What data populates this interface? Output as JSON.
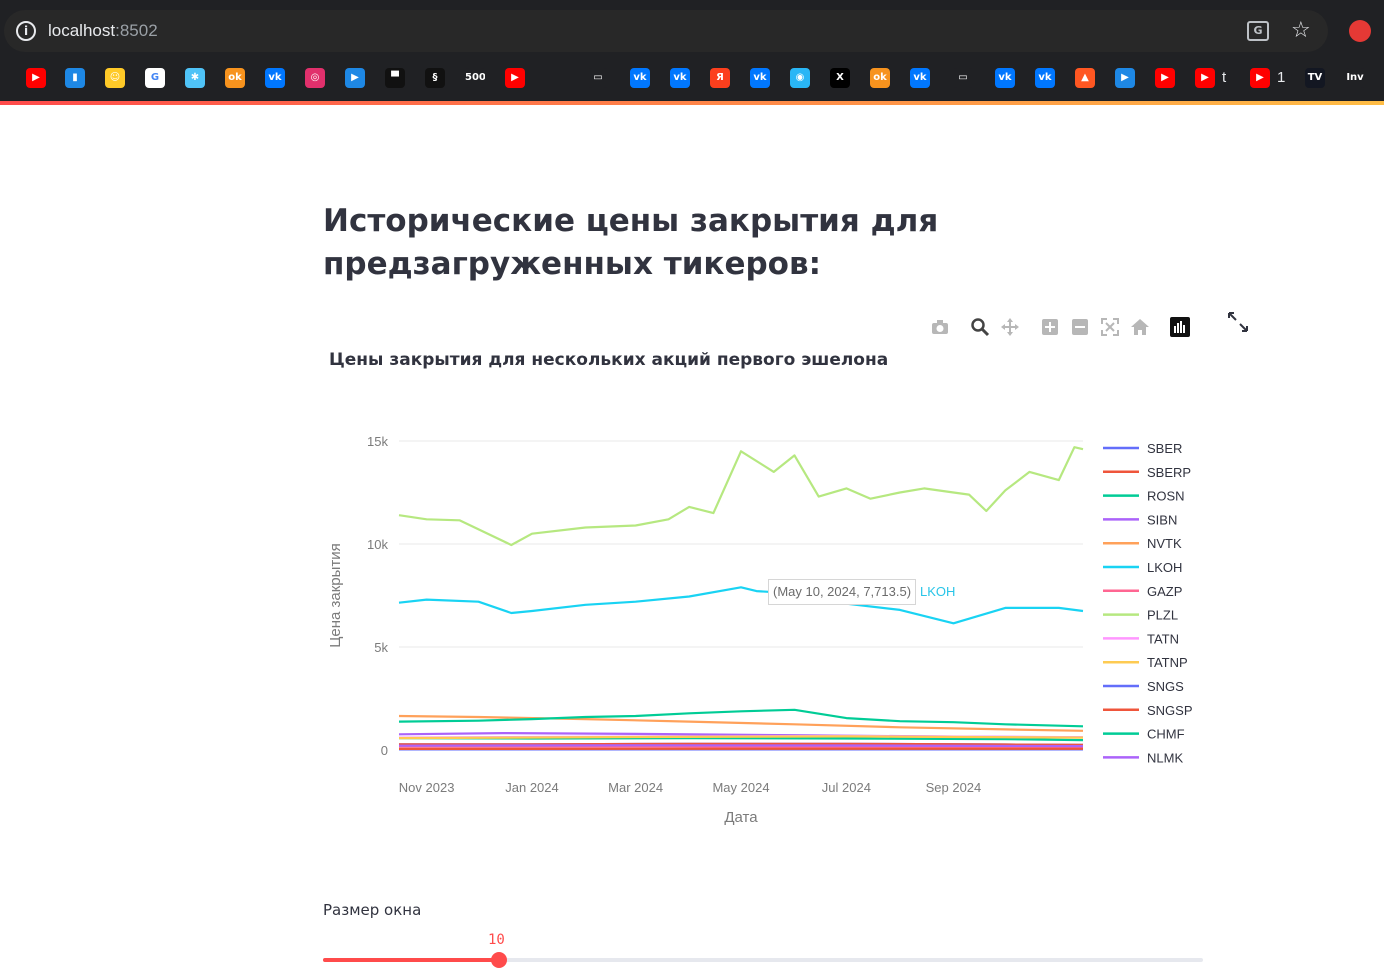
{
  "browser": {
    "url_host": "localhost",
    "url_port": ":8502",
    "bookmarks": [
      {
        "icon": "youtube-icon",
        "color": "#ff0000",
        "glyph": "▶"
      },
      {
        "icon": "analytics-icon",
        "color": "#1e88e5",
        "glyph": "▮"
      },
      {
        "icon": "smile-icon",
        "color": "#ffca28",
        "glyph": "☺"
      },
      {
        "icon": "google-icon",
        "color": "#ffffff",
        "glyph": "G"
      },
      {
        "icon": "puzzle-icon",
        "color": "#4fc3f7",
        "glyph": "✱"
      },
      {
        "icon": "odnoklassniki-icon",
        "color": "#f7931e",
        "glyph": "ok"
      },
      {
        "icon": "vk-icon",
        "color": "#0077ff",
        "glyph": "vk"
      },
      {
        "icon": "instagram-icon",
        "color": "#e1306c",
        "glyph": "◎"
      },
      {
        "icon": "play-icon",
        "color": "#1e88e5",
        "glyph": "▶"
      },
      {
        "icon": "unsplash-icon",
        "color": "#111111",
        "glyph": "▀"
      },
      {
        "icon": "squarespace-icon",
        "color": "#111111",
        "glyph": "§"
      },
      {
        "icon": "500px-icon",
        "color": "#202124",
        "glyph": "500"
      },
      {
        "icon": "youtube-icon",
        "color": "#ff0000",
        "glyph": "▶"
      },
      {
        "icon": "folder-icon",
        "color": "#202124",
        "glyph": "▭"
      },
      {
        "icon": "vk-icon",
        "color": "#0077ff",
        "glyph": "vk"
      },
      {
        "icon": "vk-icon",
        "color": "#0077ff",
        "glyph": "vk"
      },
      {
        "icon": "yandex-icon",
        "color": "#fc3f1d",
        "glyph": "Я"
      },
      {
        "icon": "vk-icon",
        "color": "#0077ff",
        "glyph": "vk"
      },
      {
        "icon": "cloud-icon",
        "color": "#29b6f6",
        "glyph": "◉"
      },
      {
        "icon": "x-icon",
        "color": "#000000",
        "glyph": "X"
      },
      {
        "icon": "odnoklassniki-icon",
        "color": "#f7931e",
        "glyph": "ok"
      },
      {
        "icon": "vk-icon",
        "color": "#0077ff",
        "glyph": "vk"
      },
      {
        "icon": "folder-icon",
        "color": "#202124",
        "glyph": "▭"
      },
      {
        "icon": "vk-icon",
        "color": "#0077ff",
        "glyph": "vk"
      },
      {
        "icon": "vk-icon",
        "color": "#0077ff",
        "glyph": "vk"
      },
      {
        "icon": "flame-icon",
        "color": "#ff5722",
        "glyph": "▲"
      },
      {
        "icon": "play-icon",
        "color": "#1e88e5",
        "glyph": "▶"
      },
      {
        "icon": "youtube-icon",
        "color": "#ff0000",
        "glyph": "▶"
      },
      {
        "icon": "youtube-icon",
        "color": "#ff0000",
        "glyph": "▶"
      },
      {
        "icon": "youtube-icon",
        "color": "#ff0000",
        "glyph": "▶"
      },
      {
        "icon": "tradingview-icon",
        "color": "#131722",
        "glyph": "TV"
      },
      {
        "icon": "investing-icon",
        "color": "#202124",
        "glyph": "Inv"
      }
    ],
    "bookmark_texts": [
      "t",
      "1"
    ]
  },
  "page": {
    "title": "Исторические цены закрытия для предзагруженных тикеров:"
  },
  "chart_data": {
    "type": "line",
    "title": "Цены закрытия для нескольких акций первого эшелона",
    "xlabel": "Дата",
    "ylabel": "Цена закрытия",
    "ylim": [
      0,
      15000
    ],
    "y_ticks": [
      0,
      5000,
      10000,
      15000
    ],
    "y_tick_labels": [
      "0",
      "5k",
      "10k",
      "15k"
    ],
    "x_tick_labels": [
      "Nov 2023",
      "Jan 2024",
      "Mar 2024",
      "May 2024",
      "Jul 2024",
      "Sep 2024"
    ],
    "x_ticks": [
      "2023-11-01",
      "2024-01-01",
      "2024-03-01",
      "2024-05-01",
      "2024-07-01",
      "2024-09-01"
    ],
    "x_range": [
      "2023-10-16",
      "2024-11-15"
    ],
    "legend_position": "right",
    "grid": true,
    "series": [
      {
        "name": "SBER",
        "color": "#636efa",
        "x": [
          "2023-10-16",
          "2024-01-01",
          "2024-04-01",
          "2024-07-01",
          "2024-10-01",
          "2024-11-15"
        ],
        "values": [
          270,
          272,
          300,
          300,
          265,
          250
        ]
      },
      {
        "name": "SBERP",
        "color": "#ef553b",
        "x": [
          "2023-10-16",
          "2024-01-01",
          "2024-04-01",
          "2024-07-01",
          "2024-10-01",
          "2024-11-15"
        ],
        "values": [
          270,
          272,
          300,
          300,
          265,
          250
        ]
      },
      {
        "name": "ROSN",
        "color": "#00cc96",
        "x": [
          "2023-10-16",
          "2024-01-01",
          "2024-04-01",
          "2024-07-01",
          "2024-10-01",
          "2024-11-15"
        ],
        "values": [
          580,
          560,
          580,
          560,
          530,
          480
        ]
      },
      {
        "name": "SIBN",
        "color": "#ab63fa",
        "x": [
          "2023-10-16",
          "2023-12-15",
          "2024-03-01",
          "2024-06-01",
          "2024-09-01",
          "2024-11-15"
        ],
        "values": [
          760,
          820,
          780,
          720,
          650,
          610
        ]
      },
      {
        "name": "NVTK",
        "color": "#ffa15a",
        "x": [
          "2023-10-16",
          "2023-12-01",
          "2024-02-01",
          "2024-04-01",
          "2024-06-01",
          "2024-08-01",
          "2024-10-01",
          "2024-11-15"
        ],
        "values": [
          1650,
          1600,
          1500,
          1380,
          1250,
          1100,
          1000,
          930
        ]
      },
      {
        "name": "LKOH",
        "color": "#19d3f3",
        "x": [
          "2023-10-16",
          "2023-11-01",
          "2023-12-01",
          "2023-12-20",
          "2024-01-01",
          "2024-02-01",
          "2024-03-01",
          "2024-04-01",
          "2024-05-01",
          "2024-05-10",
          "2024-06-01",
          "2024-07-01",
          "2024-08-01",
          "2024-09-01",
          "2024-10-01",
          "2024-11-01",
          "2024-11-15"
        ],
        "values": [
          7150,
          7300,
          7200,
          6650,
          6750,
          7050,
          7200,
          7450,
          7900,
          7713.5,
          7600,
          7100,
          6800,
          6150,
          6900,
          6900,
          6750
        ]
      },
      {
        "name": "GAZP",
        "color": "#ff6692",
        "x": [
          "2023-10-16",
          "2024-03-01",
          "2024-07-01",
          "2024-11-15"
        ],
        "values": [
          170,
          160,
          130,
          120
        ]
      },
      {
        "name": "PLZL",
        "color": "#b6e880",
        "x": [
          "2023-10-16",
          "2023-11-01",
          "2023-11-20",
          "2023-12-20",
          "2024-01-01",
          "2024-02-01",
          "2024-03-01",
          "2024-03-20",
          "2024-04-01",
          "2024-04-15",
          "2024-05-01",
          "2024-05-20",
          "2024-06-01",
          "2024-06-15",
          "2024-07-01",
          "2024-07-15",
          "2024-08-01",
          "2024-08-15",
          "2024-09-01",
          "2024-09-10",
          "2024-09-20",
          "2024-10-01",
          "2024-10-15",
          "2024-11-01",
          "2024-11-10",
          "2024-11-15"
        ],
        "values": [
          11400,
          11200,
          11150,
          9950,
          10500,
          10800,
          10900,
          11200,
          11800,
          11500,
          14500,
          13500,
          14300,
          12300,
          12700,
          12200,
          12500,
          12700,
          12500,
          12400,
          11600,
          12600,
          13500,
          13100,
          14700,
          14600
        ]
      },
      {
        "name": "TATN",
        "color": "#ff97ff",
        "x": [
          "2023-10-16",
          "2024-03-01",
          "2024-07-01",
          "2024-11-15"
        ],
        "values": [
          600,
          650,
          680,
          620
        ]
      },
      {
        "name": "TATNP",
        "color": "#fecb52",
        "x": [
          "2023-10-16",
          "2024-03-01",
          "2024-07-01",
          "2024-11-15"
        ],
        "values": [
          580,
          630,
          660,
          600
        ]
      },
      {
        "name": "SNGS",
        "color": "#636efa",
        "x": [
          "2023-10-16",
          "2024-03-01",
          "2024-07-01",
          "2024-11-15"
        ],
        "values": [
          30,
          31,
          30,
          27
        ]
      },
      {
        "name": "SNGSP",
        "color": "#ef553b",
        "x": [
          "2023-10-16",
          "2024-03-01",
          "2024-07-01",
          "2024-11-15"
        ],
        "values": [
          55,
          58,
          60,
          57
        ]
      },
      {
        "name": "CHMF",
        "color": "#00cc96",
        "x": [
          "2023-10-16",
          "2023-12-01",
          "2024-01-01",
          "2024-02-01",
          "2024-03-01",
          "2024-04-01",
          "2024-05-01",
          "2024-06-01",
          "2024-07-01",
          "2024-08-01",
          "2024-09-01",
          "2024-10-01",
          "2024-11-15"
        ],
        "values": [
          1380,
          1420,
          1500,
          1600,
          1650,
          1780,
          1880,
          1950,
          1550,
          1400,
          1350,
          1250,
          1150
        ]
      },
      {
        "name": "NLMK",
        "color": "#ab63fa",
        "x": [
          "2023-10-16",
          "2024-03-01",
          "2024-07-01",
          "2024-11-15"
        ],
        "values": [
          210,
          230,
          220,
          190
        ]
      }
    ]
  },
  "hover": {
    "text": "(May 10, 2024, 7,713.5)",
    "series": "LKOH"
  },
  "slider": {
    "label": "Размер окна",
    "value": "10",
    "fraction": 0.2
  }
}
